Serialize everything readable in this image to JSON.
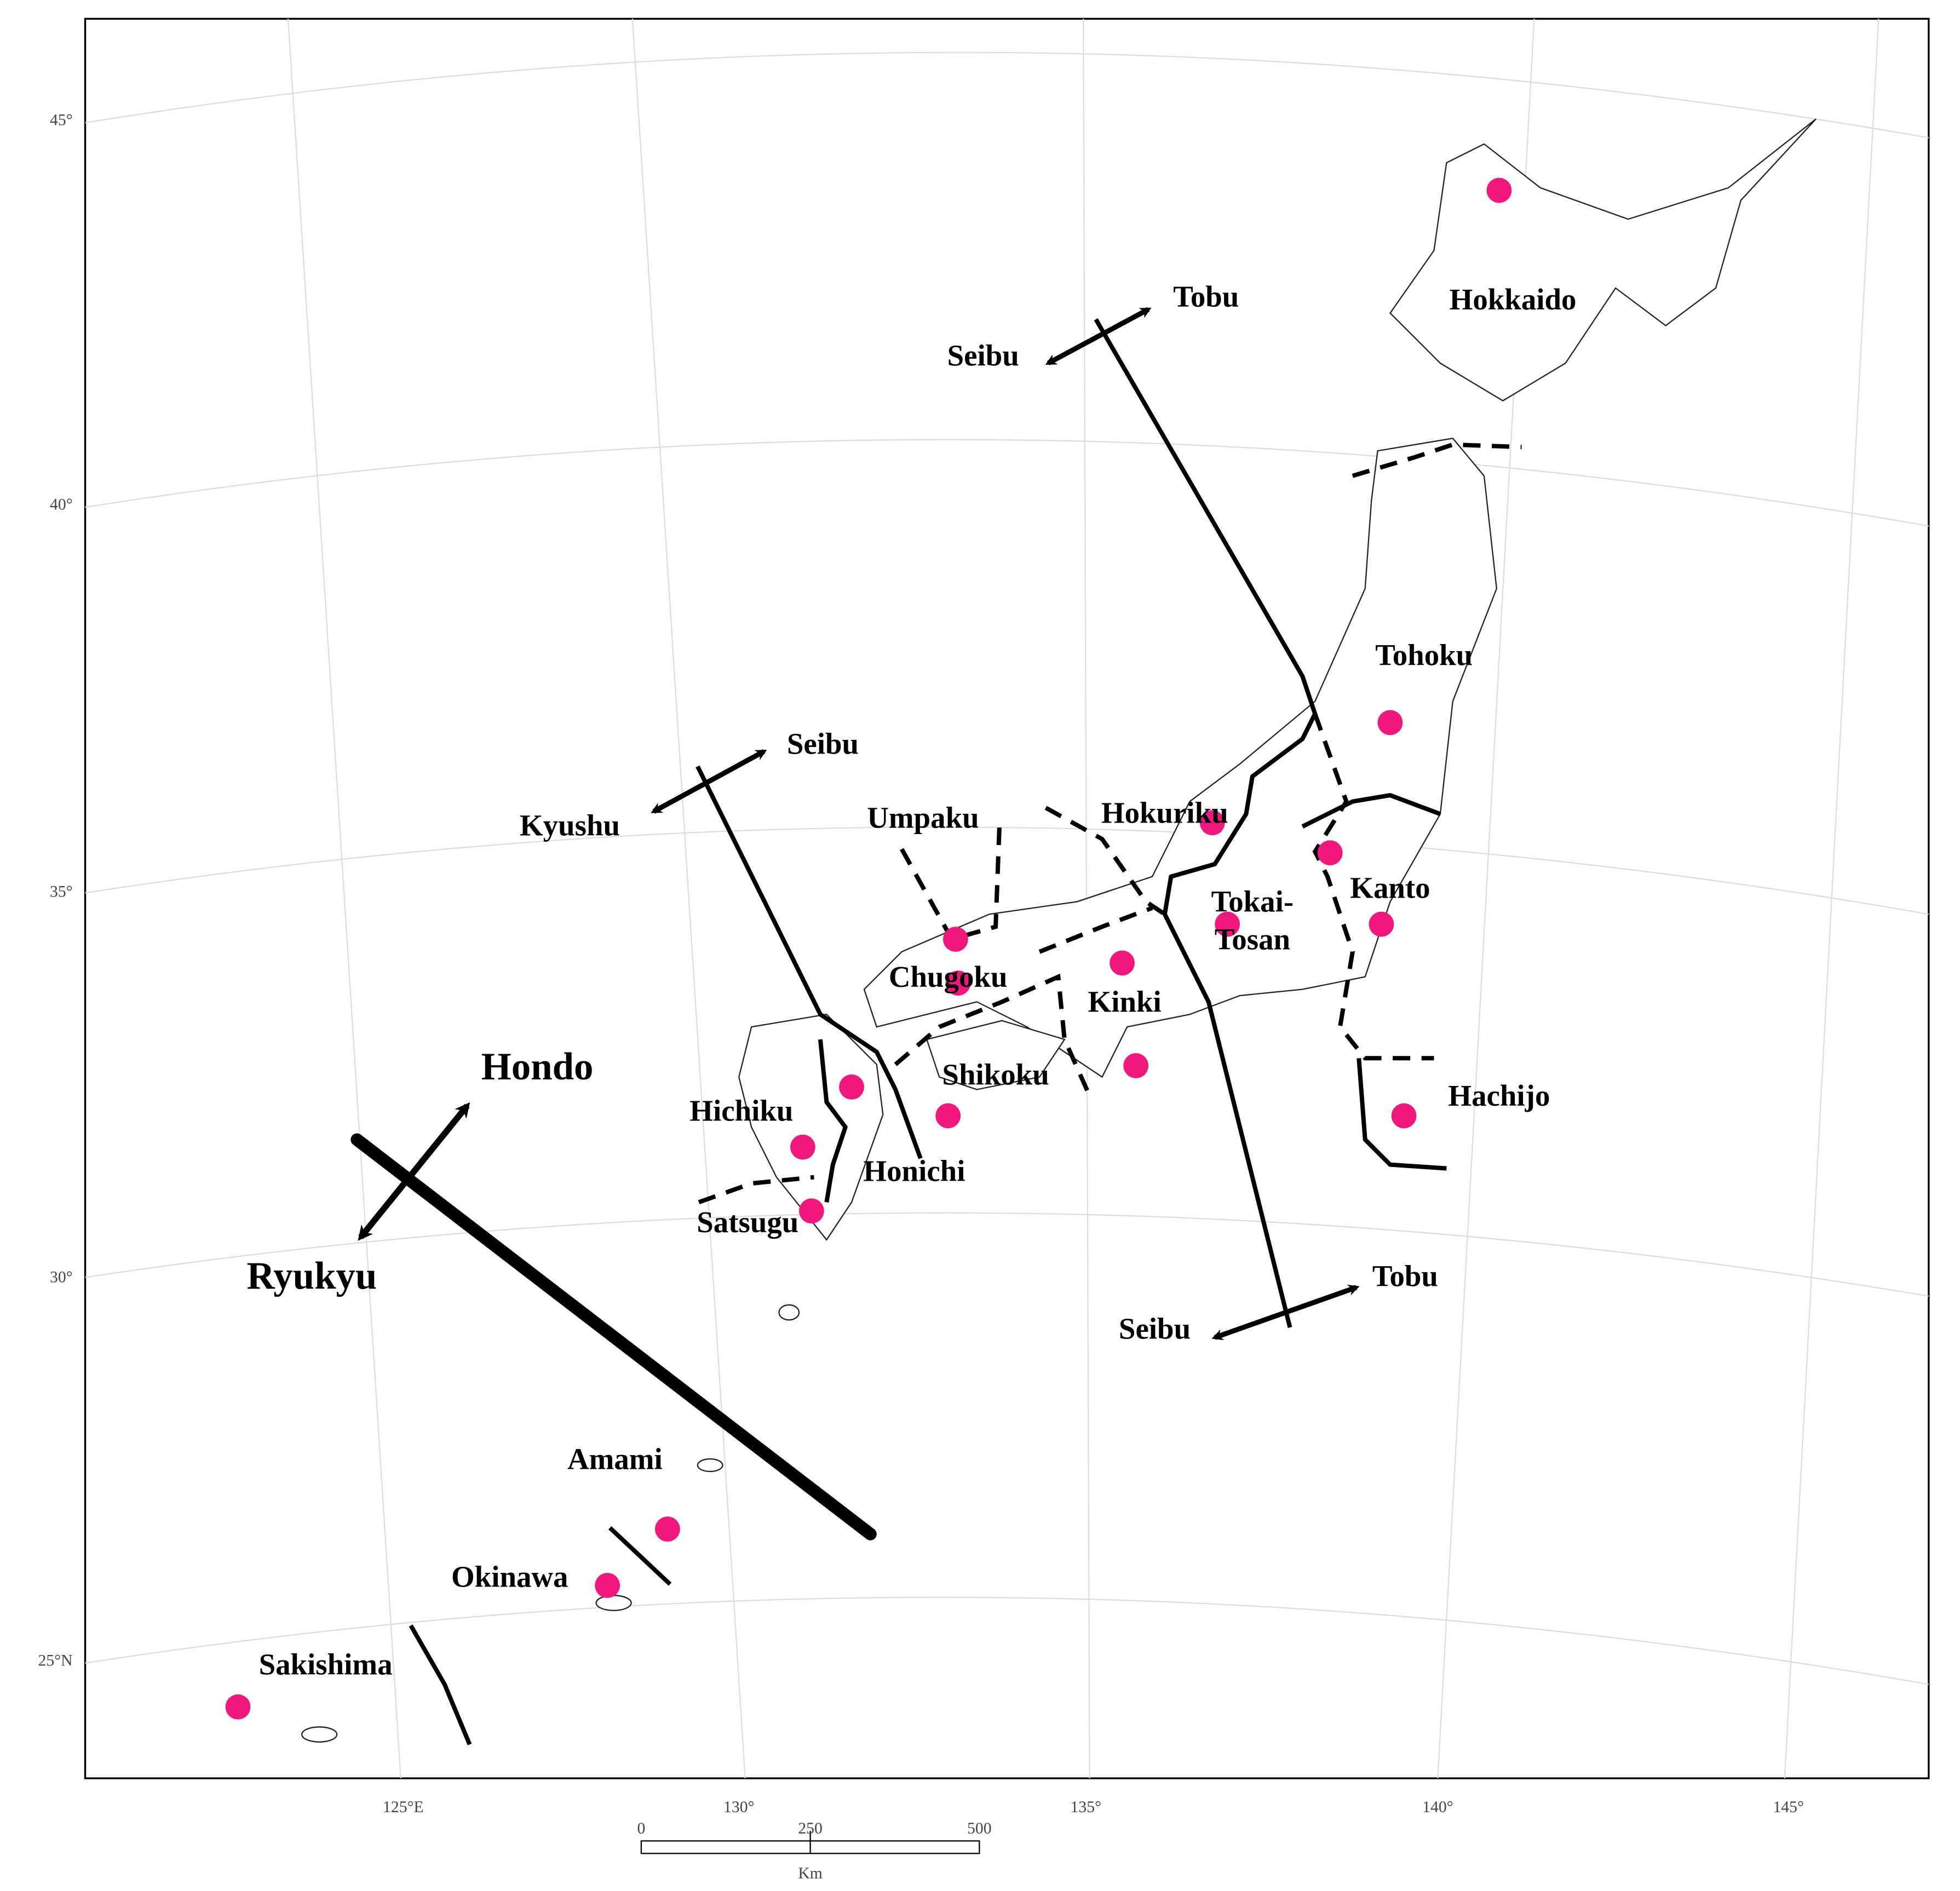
{
  "map": {
    "regions": [
      {
        "label": "Hokkaido"
      },
      {
        "label": "Tohoku"
      },
      {
        "label": "Hokuriku"
      },
      {
        "label": "Kanto"
      },
      {
        "label_lines": [
          "Tokai-",
          "Tosan"
        ]
      },
      {
        "label": "Umpaku"
      },
      {
        "label": "Chugoku"
      },
      {
        "label": "Kinki"
      },
      {
        "label": "Shikoku"
      },
      {
        "label": "Hichiku"
      },
      {
        "label": "Honichi"
      },
      {
        "label": "Satsugu"
      },
      {
        "label": "Hachijo"
      },
      {
        "label": "Amami"
      },
      {
        "label": "Okinawa"
      },
      {
        "label": "Sakishima"
      }
    ],
    "divisions": [
      {
        "labels": [
          "Tobu",
          "Seibu"
        ]
      },
      {
        "labels": [
          "Seibu",
          "Kyushu"
        ]
      },
      {
        "labels": [
          "Tobu",
          "Seibu"
        ]
      },
      {
        "labels": [
          "Hondo",
          "Ryukyu"
        ]
      }
    ],
    "latitude_labels": [
      "45°",
      "40°",
      "35°",
      "30°",
      "25°N"
    ],
    "longitude_labels": [
      "125°E",
      "130°",
      "135°",
      "140°",
      "145°"
    ],
    "scale": {
      "ticks": [
        "0",
        "250",
        "500"
      ],
      "unit": "Km"
    }
  }
}
